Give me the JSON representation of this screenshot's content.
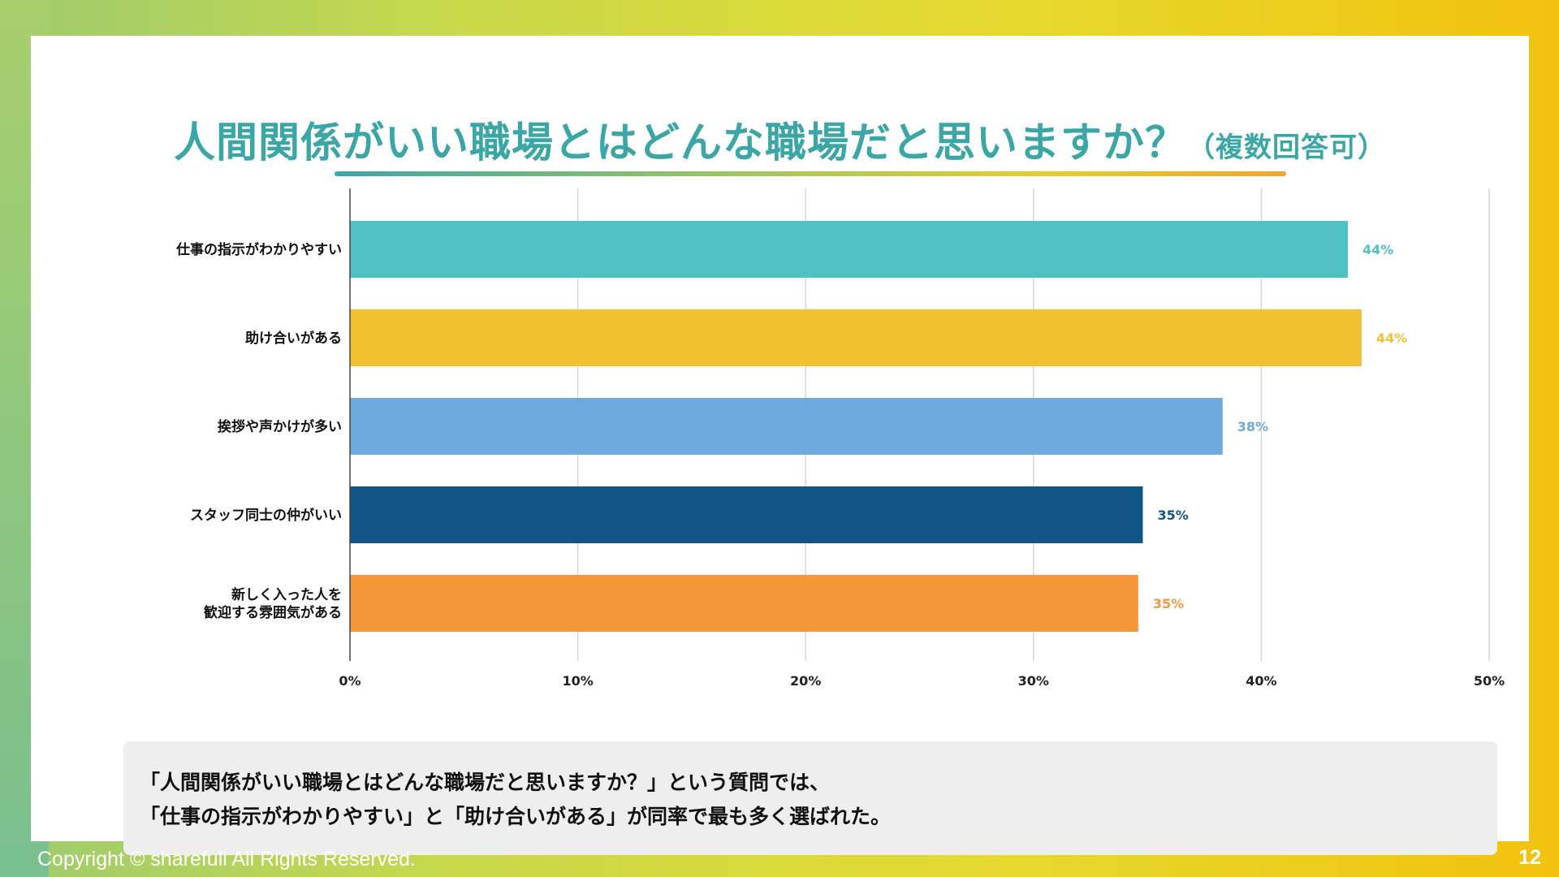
{
  "slide": {
    "title_main": "人間関係がいい職場とはどんな職場だと思いますか？",
    "title_sub": "（複数回答可）",
    "summary_line1": "「人間関係がいい職場とはどんな職場だと思いますか？」という質問では、",
    "summary_line2": "「仕事の指示がわかりやすい」と「助け合いがある」が同率で最も多く選ばれた。",
    "copyright": "Copyright © sharefull All Rights Reserved.",
    "page_number": "12"
  },
  "chart_data": {
    "type": "bar",
    "orientation": "horizontal",
    "title": "",
    "xlabel": "",
    "ylabel": "",
    "xlim": [
      0,
      50
    ],
    "xticks": [
      "0%",
      "10%",
      "20%",
      "30%",
      "40%",
      "50%"
    ],
    "grid": true,
    "categories": [
      [
        "仕事の指示がわかりやすい"
      ],
      [
        "助け合いがある"
      ],
      [
        "挨拶や声かけが多い"
      ],
      [
        "スタッフ同士の仲がいい"
      ],
      [
        "新しく入った人を",
        "歓迎する雰囲気がある"
      ]
    ],
    "values": [
      43.8,
      44.4,
      38.3,
      34.8,
      34.6
    ],
    "labels": [
      "44%",
      "44%",
      "38%",
      "35%",
      "35%"
    ],
    "colors": [
      "#4fc1c3",
      "#f0c232",
      "#6fa8db",
      "#115587",
      "#f5973a"
    ]
  }
}
